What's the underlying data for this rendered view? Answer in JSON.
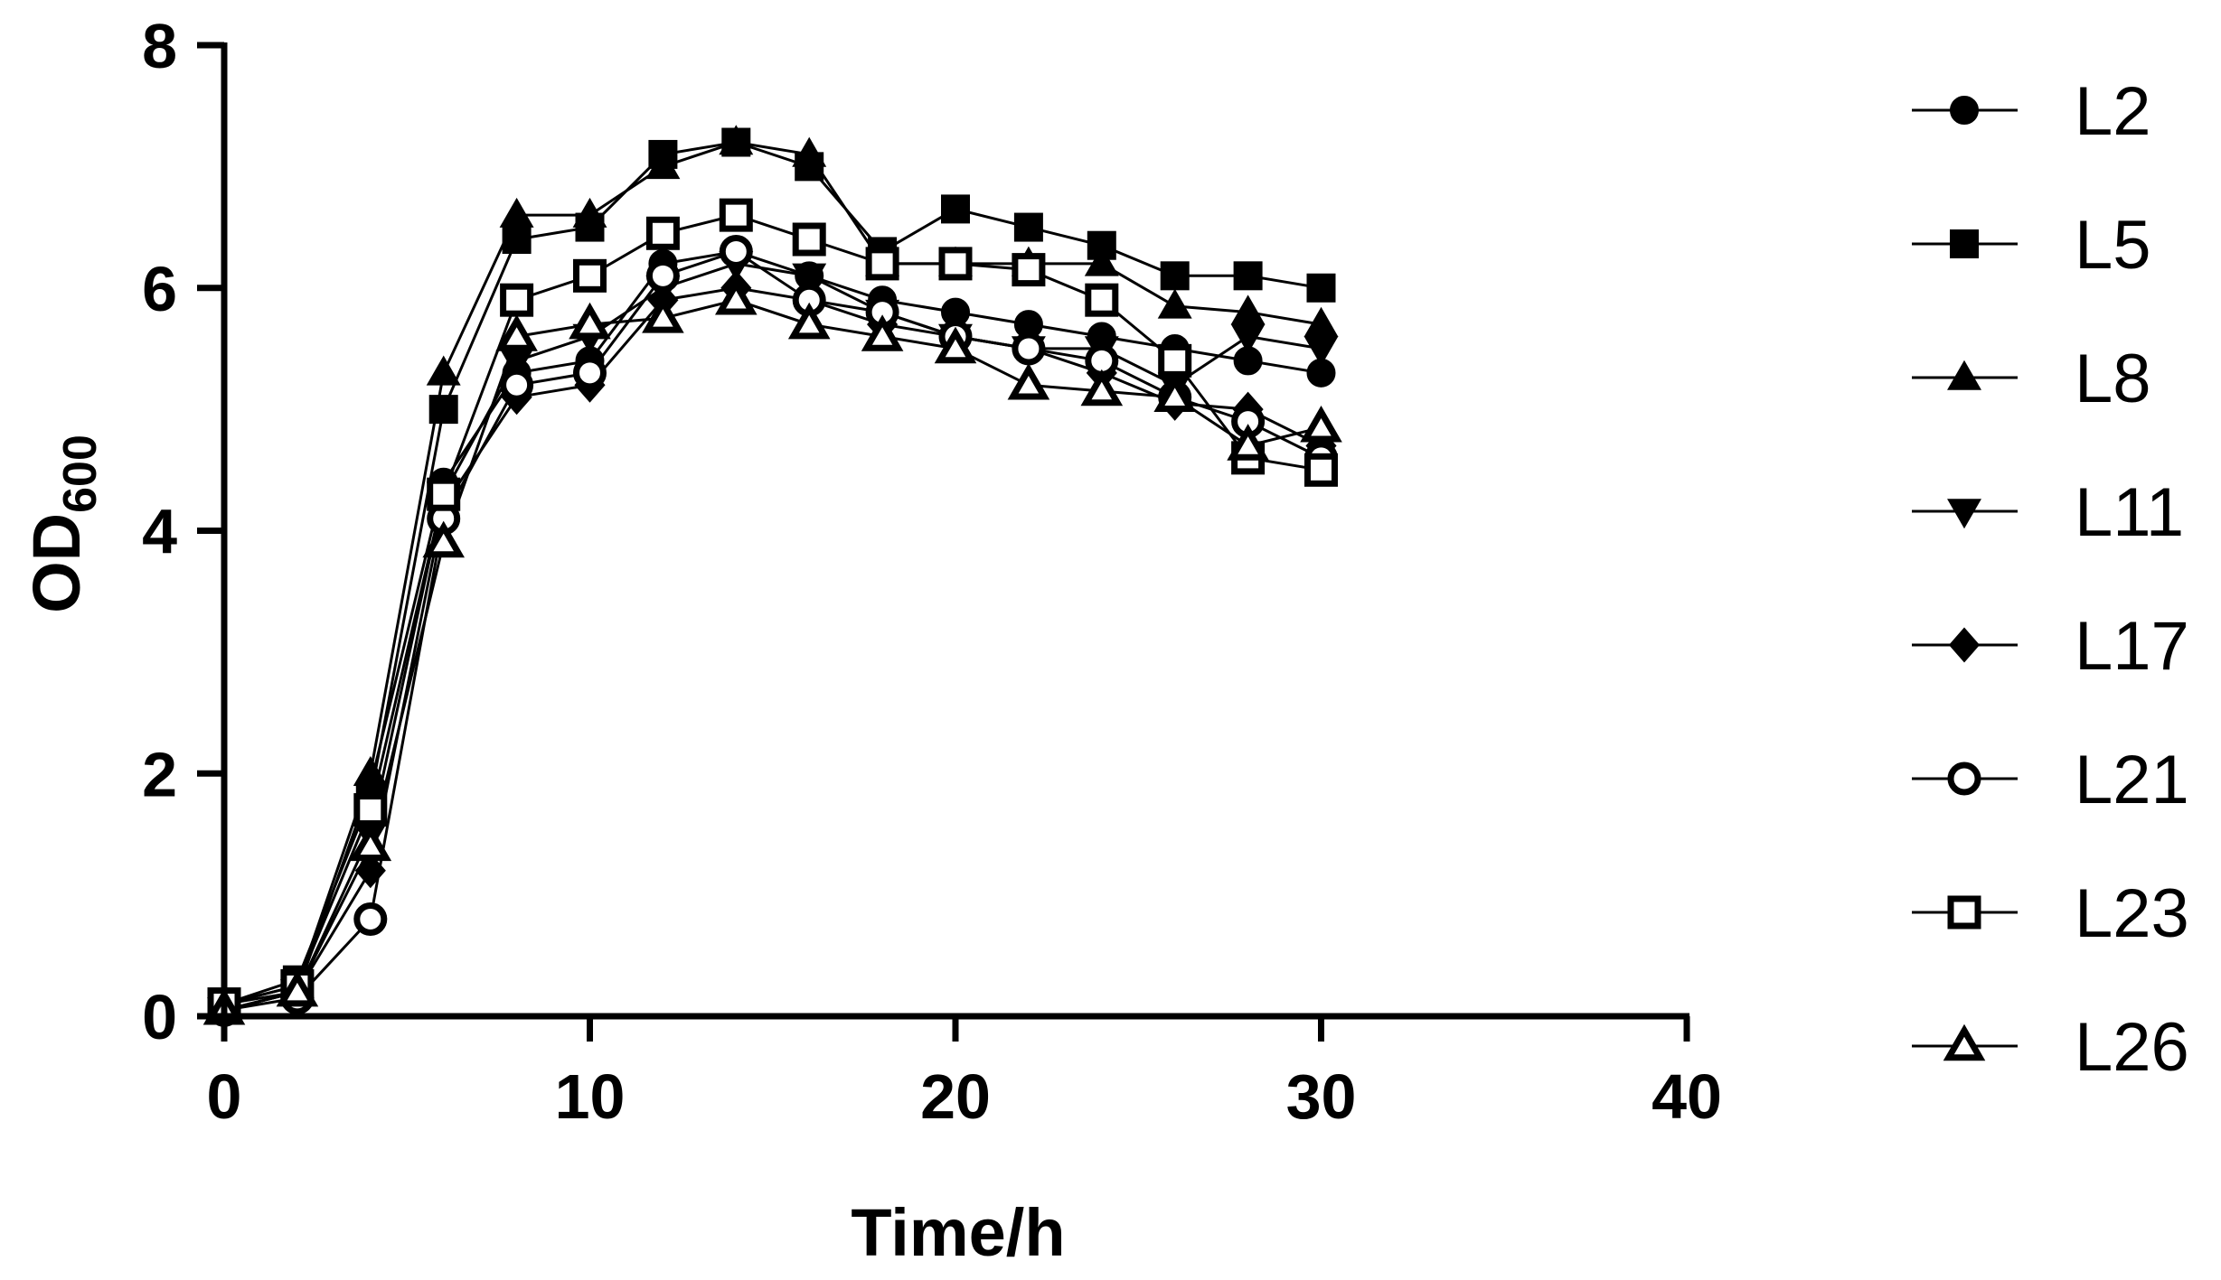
{
  "chart_data": {
    "type": "line",
    "xlabel": "Time/h",
    "ylabel": {
      "main": "OD",
      "sub": "600"
    },
    "xlim": [
      0,
      40
    ],
    "ylim": [
      0,
      8
    ],
    "xticks": [
      0,
      10,
      20,
      30,
      40
    ],
    "yticks": [
      0,
      2,
      4,
      6,
      8
    ],
    "grid": false,
    "legend_position": "right",
    "x": [
      0,
      2,
      4,
      6,
      8,
      10,
      12,
      14,
      16,
      18,
      20,
      22,
      24,
      26,
      28,
      30
    ],
    "series": [
      {
        "name": "L2",
        "marker": "circle-filled",
        "values": [
          0.1,
          0.2,
          1.9,
          4.4,
          5.3,
          5.4,
          6.2,
          6.3,
          6.1,
          5.9,
          5.8,
          5.7,
          5.6,
          5.5,
          5.4,
          5.3
        ]
      },
      {
        "name": "L5",
        "marker": "square-filled",
        "values": [
          0.1,
          0.3,
          1.8,
          5.0,
          6.4,
          6.5,
          7.1,
          7.2,
          7.0,
          6.3,
          6.65,
          6.5,
          6.35,
          6.1,
          6.1,
          6.0
        ]
      },
      {
        "name": "L8",
        "marker": "triangle-up-filled",
        "values": [
          0.1,
          0.25,
          2.0,
          5.3,
          6.6,
          6.6,
          7.0,
          7.2,
          7.1,
          6.2,
          6.2,
          6.2,
          6.2,
          5.85,
          5.8,
          5.7
        ]
      },
      {
        "name": "L11",
        "marker": "triangle-down-filled",
        "values": [
          0.05,
          0.2,
          1.5,
          4.3,
          5.4,
          5.6,
          6.0,
          6.2,
          6.1,
          5.8,
          5.6,
          5.5,
          5.5,
          5.2,
          5.6,
          5.5
        ]
      },
      {
        "name": "L17",
        "marker": "diamond-filled",
        "values": [
          0.05,
          0.2,
          1.2,
          4.2,
          5.1,
          5.2,
          5.9,
          6.0,
          5.9,
          5.7,
          5.6,
          5.5,
          5.3,
          5.05,
          5.0,
          4.7
        ]
      },
      {
        "name": "L21",
        "marker": "circle-open",
        "values": [
          0.05,
          0.15,
          0.8,
          4.1,
          5.2,
          5.3,
          6.1,
          6.3,
          5.9,
          5.8,
          5.6,
          5.5,
          5.4,
          5.1,
          4.9,
          4.6
        ]
      },
      {
        "name": "L23",
        "marker": "square-open",
        "values": [
          0.1,
          0.25,
          1.7,
          4.3,
          5.9,
          6.1,
          6.45,
          6.6,
          6.4,
          6.2,
          6.2,
          6.15,
          5.9,
          5.4,
          4.6,
          4.5
        ]
      },
      {
        "name": "L26",
        "marker": "triangle-up-open",
        "values": [
          0.05,
          0.2,
          1.4,
          3.9,
          5.6,
          5.7,
          5.75,
          5.9,
          5.7,
          5.6,
          5.5,
          5.2,
          5.15,
          5.1,
          4.7,
          4.85
        ]
      }
    ]
  }
}
